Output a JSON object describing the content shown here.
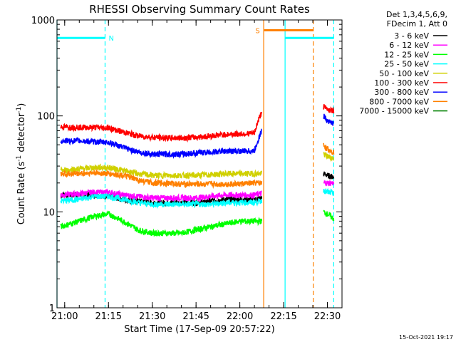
{
  "chart_data": {
    "type": "line",
    "title": "RHESSI Observing Summary Count Rates",
    "xlabel": "Start Time (17-Sep-09 20:57:22)",
    "ylabel_main": "Count Rate (s",
    "ylabel_sup1": "-1",
    "ylabel_mid": " detector",
    "ylabel_sup2": "-1",
    "ylabel_end": ")",
    "yscale": "log",
    "ylim": [
      1,
      1000
    ],
    "xlim": [
      "20:57:22",
      "22:35:00"
    ],
    "xticks": [
      "21:00",
      "21:15",
      "21:30",
      "21:45",
      "22:00",
      "22:15",
      "22:30"
    ],
    "yticks": [
      "1",
      "10",
      "100",
      "1000"
    ],
    "legend_header": [
      "Det 1,3,4,5,6,9,",
      "FDecim 1, Att 0"
    ],
    "legend_position": "top-right",
    "footer_timestamp": "15-Oct-2021 19:17",
    "flags": [
      {
        "label": "N",
        "color": "#00ffff",
        "level": 650,
        "from": "20:57:22",
        "to": "21:13:50",
        "bar_end_dashed": "21:13:50"
      },
      {
        "label": "S",
        "color": "#ff8000",
        "level": 780,
        "from": "22:08:20",
        "to": "22:25:10",
        "bar_end_dashed": "22:25:10"
      },
      {
        "label": "",
        "color": "#00ffff",
        "level": 650,
        "from": "22:15:30",
        "to": "22:32:10",
        "bar_end_dashed": "22:32:10"
      }
    ],
    "boundaries": [
      {
        "time": "20:57:22",
        "color": "#00ffff",
        "style": "solid"
      },
      {
        "time": "21:13:50",
        "color": "#00ffff",
        "style": "dashed"
      },
      {
        "time": "22:08:10",
        "color": "#ff8000",
        "style": "solid"
      },
      {
        "time": "22:15:30",
        "color": "#00ffff",
        "style": "solid"
      },
      {
        "time": "22:25:10",
        "color": "#ff8000",
        "style": "dashed"
      },
      {
        "time": "22:32:10",
        "color": "#00ffff",
        "style": "dashed"
      }
    ],
    "series": [
      {
        "name": "3 - 6 keV",
        "color": "#000000",
        "segment1": {
          "start": "20:58:40",
          "end": "22:07:30",
          "t": [
            "20:58:40",
            "21:05",
            "21:10",
            "21:15",
            "21:20",
            "21:25",
            "21:30",
            "21:35",
            "21:40",
            "21:45",
            "21:50",
            "21:55",
            "22:00",
            "22:05",
            "22:07:30"
          ],
          "y": [
            15,
            15,
            15,
            14.5,
            13.5,
            13,
            12.5,
            12.5,
            12.5,
            12.5,
            13,
            13.5,
            13.5,
            13.5,
            14
          ]
        },
        "segment2": {
          "start": "22:28:40",
          "end": "22:32:10",
          "t": [
            "22:28:40",
            "22:30",
            "22:32:10"
          ],
          "y": [
            25,
            24,
            23
          ]
        }
      },
      {
        "name": "6 - 12 keV",
        "color": "#ff00ff",
        "segment1": {
          "start": "20:58:40",
          "end": "22:07:30",
          "t": [
            "20:58:40",
            "21:05",
            "21:10",
            "21:15",
            "21:20",
            "21:25",
            "21:30",
            "21:35",
            "21:40",
            "21:45",
            "21:50",
            "21:55",
            "22:00",
            "22:05",
            "22:07:30"
          ],
          "y": [
            15,
            15.5,
            16,
            16,
            15,
            14.5,
            14,
            14,
            14,
            14,
            14.5,
            15,
            15,
            15,
            15.5
          ]
        },
        "segment2": {
          "start": "22:28:40",
          "end": "22:32:10",
          "t": [
            "22:28:40",
            "22:30",
            "22:32:10"
          ],
          "y": [
            20,
            20,
            20
          ]
        }
      },
      {
        "name": "12 - 25 keV",
        "color": "#00ff00",
        "segment1": {
          "start": "20:58:40",
          "end": "22:07:30",
          "t": [
            "20:58:40",
            "21:05",
            "21:10",
            "21:15",
            "21:20",
            "21:25",
            "21:30",
            "21:35",
            "21:40",
            "21:45",
            "21:50",
            "21:55",
            "22:00",
            "22:05",
            "22:07:30"
          ],
          "y": [
            7,
            8,
            9,
            9.5,
            8,
            6.5,
            6,
            6,
            6,
            6.5,
            7,
            7.5,
            8,
            8,
            8
          ]
        },
        "segment2": {
          "start": "22:28:40",
          "end": "22:32:10",
          "t": [
            "22:28:40",
            "22:30",
            "22:32:10"
          ],
          "y": [
            10,
            9.5,
            8.5
          ]
        }
      },
      {
        "name": "25 - 50 keV",
        "color": "#00ffff",
        "segment1": {
          "start": "20:58:40",
          "end": "22:07:30",
          "t": [
            "20:58:40",
            "21:05",
            "21:10",
            "21:15",
            "21:20",
            "21:25",
            "21:30",
            "21:35",
            "21:40",
            "21:45",
            "21:50",
            "21:55",
            "22:00",
            "22:05",
            "22:07:30"
          ],
          "y": [
            13,
            13.5,
            14.5,
            14.5,
            13.5,
            12.5,
            12,
            12,
            12,
            12,
            12,
            12.5,
            12.5,
            12.5,
            13
          ]
        },
        "segment2": {
          "start": "22:28:40",
          "end": "22:32:10",
          "t": [
            "22:28:40",
            "22:30",
            "22:32:10"
          ],
          "y": [
            17,
            16,
            15.5
          ]
        }
      },
      {
        "name": "50 - 100 keV",
        "color": "#d0d000",
        "segment1": {
          "start": "20:58:40",
          "end": "22:07:30",
          "t": [
            "20:58:40",
            "21:05",
            "21:10",
            "21:15",
            "21:20",
            "21:25",
            "21:30",
            "21:35",
            "21:40",
            "21:45",
            "21:50",
            "21:55",
            "22:00",
            "22:05",
            "22:07:30"
          ],
          "y": [
            27,
            28,
            29,
            29,
            27,
            25,
            24,
            24,
            24,
            24,
            24.5,
            25,
            25,
            25,
            25
          ]
        },
        "segment2": {
          "start": "22:28:40",
          "end": "22:32:10",
          "t": [
            "22:28:40",
            "22:30",
            "22:32:10"
          ],
          "y": [
            40,
            38,
            36
          ]
        }
      },
      {
        "name": "100 - 300 keV",
        "color": "#ff0000",
        "segment1": {
          "start": "20:58:40",
          "end": "22:07:30",
          "t": [
            "20:58:40",
            "21:05",
            "21:10",
            "21:15",
            "21:20",
            "21:25",
            "21:30",
            "21:35",
            "21:40",
            "21:45",
            "21:50",
            "21:55",
            "22:00",
            "22:05",
            "22:07:30"
          ],
          "y": [
            77,
            76,
            76,
            75,
            68,
            62,
            60,
            59,
            59,
            60,
            62,
            64,
            65,
            66,
            110
          ]
        },
        "segment2": {
          "start": "22:28:40",
          "end": "22:32:10",
          "t": [
            "22:28:40",
            "22:30",
            "22:32:10"
          ],
          "y": [
            125,
            118,
            112
          ]
        }
      },
      {
        "name": "300 - 800 keV",
        "color": "#0000ff",
        "segment1": {
          "start": "20:58:40",
          "end": "22:07:30",
          "t": [
            "20:58:40",
            "21:05",
            "21:10",
            "21:15",
            "21:20",
            "21:25",
            "21:30",
            "21:35",
            "21:40",
            "21:45",
            "21:50",
            "21:55",
            "22:00",
            "22:05",
            "22:07:30"
          ],
          "y": [
            55,
            55,
            54,
            53,
            47,
            42,
            40,
            40,
            40,
            41,
            42,
            43,
            43,
            43,
            70
          ]
        },
        "segment2": {
          "start": "22:28:40",
          "end": "22:32:10",
          "t": [
            "22:28:40",
            "22:30",
            "22:32:10"
          ],
          "y": [
            100,
            90,
            82
          ]
        }
      },
      {
        "name": "800 - 7000 keV",
        "color": "#ff8000",
        "segment1": {
          "start": "20:58:40",
          "end": "22:07:30",
          "t": [
            "20:58:40",
            "21:05",
            "21:10",
            "21:15",
            "21:20",
            "21:25",
            "21:30",
            "21:35",
            "21:40",
            "21:45",
            "21:50",
            "21:55",
            "22:00",
            "22:05",
            "22:07:30"
          ],
          "y": [
            25,
            25,
            25.5,
            25,
            24,
            21.5,
            20,
            20,
            19.5,
            19.5,
            19.5,
            19.5,
            19.5,
            20,
            20
          ]
        },
        "segment2": {
          "start": "22:28:40",
          "end": "22:32:10",
          "t": [
            "22:28:40",
            "22:30",
            "22:32:10"
          ],
          "y": [
            50,
            45,
            42
          ]
        }
      },
      {
        "name": "7000 - 15000 keV",
        "color": "#008000",
        "segment1": null,
        "segment2": null
      }
    ]
  }
}
